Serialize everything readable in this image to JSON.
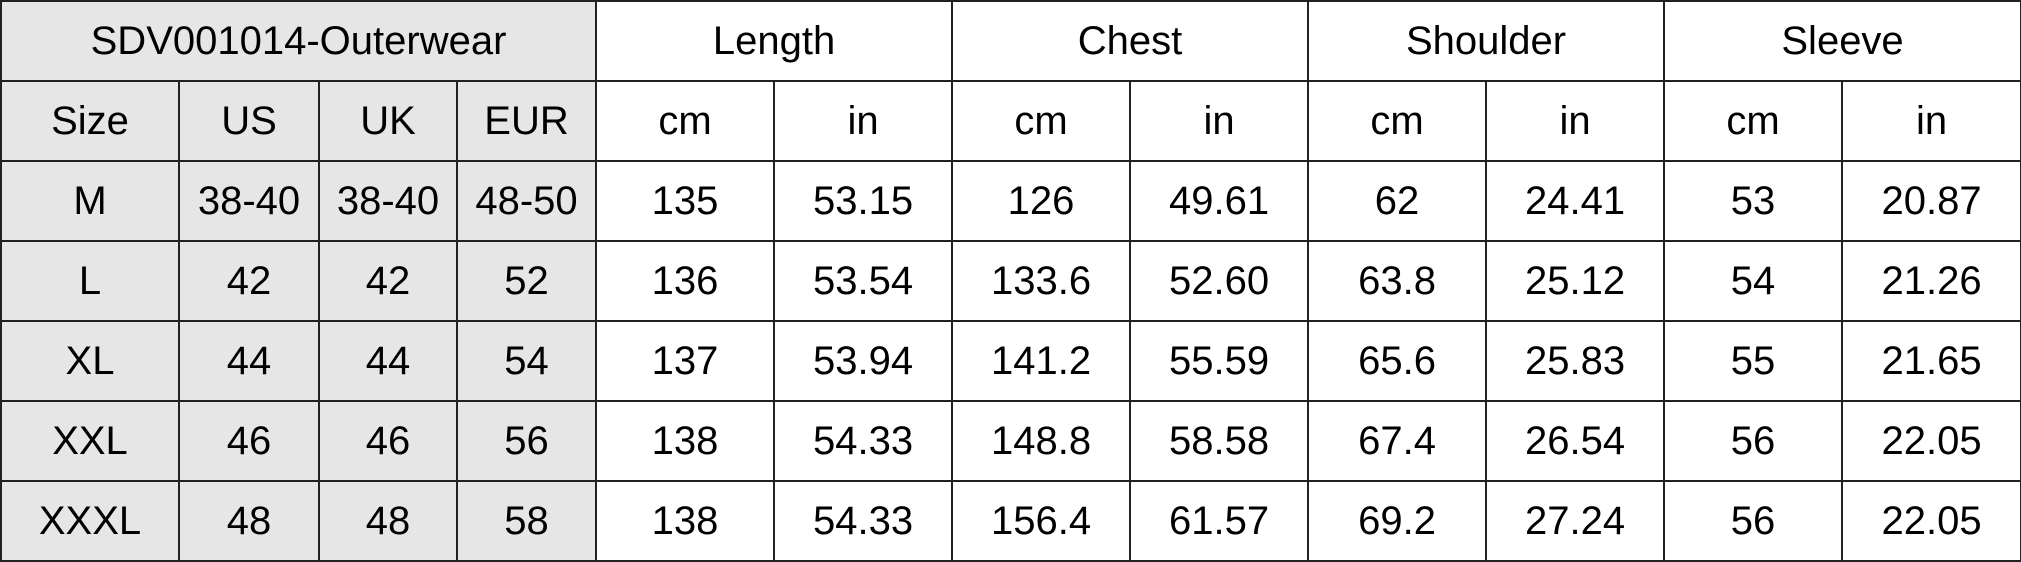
{
  "title": "SDV001014-Outerwear",
  "measurements": [
    "Length",
    "Chest",
    "Shoulder",
    "Sleeve"
  ],
  "size_headers": [
    "Size",
    "US",
    "UK",
    "EUR"
  ],
  "units": [
    "cm",
    "in"
  ],
  "colors": {
    "size_section_bg": "#e6e6e6",
    "border": "#222222"
  },
  "rows": [
    {
      "size": "M",
      "us": "38-40",
      "uk": "38-40",
      "eur": "48-50",
      "values": [
        "135",
        "53.15",
        "126",
        "49.61",
        "62",
        "24.41",
        "53",
        "20.87"
      ]
    },
    {
      "size": "L",
      "us": "42",
      "uk": "42",
      "eur": "52",
      "values": [
        "136",
        "53.54",
        "133.6",
        "52.60",
        "63.8",
        "25.12",
        "54",
        "21.26"
      ]
    },
    {
      "size": "XL",
      "us": "44",
      "uk": "44",
      "eur": "54",
      "values": [
        "137",
        "53.94",
        "141.2",
        "55.59",
        "65.6",
        "25.83",
        "55",
        "21.65"
      ]
    },
    {
      "size": "XXL",
      "us": "46",
      "uk": "46",
      "eur": "56",
      "values": [
        "138",
        "54.33",
        "148.8",
        "58.58",
        "67.4",
        "26.54",
        "56",
        "22.05"
      ]
    },
    {
      "size": "XXXL",
      "us": "48",
      "uk": "48",
      "eur": "58",
      "values": [
        "138",
        "54.33",
        "156.4",
        "61.57",
        "69.2",
        "27.24",
        "56",
        "22.05"
      ]
    }
  ]
}
